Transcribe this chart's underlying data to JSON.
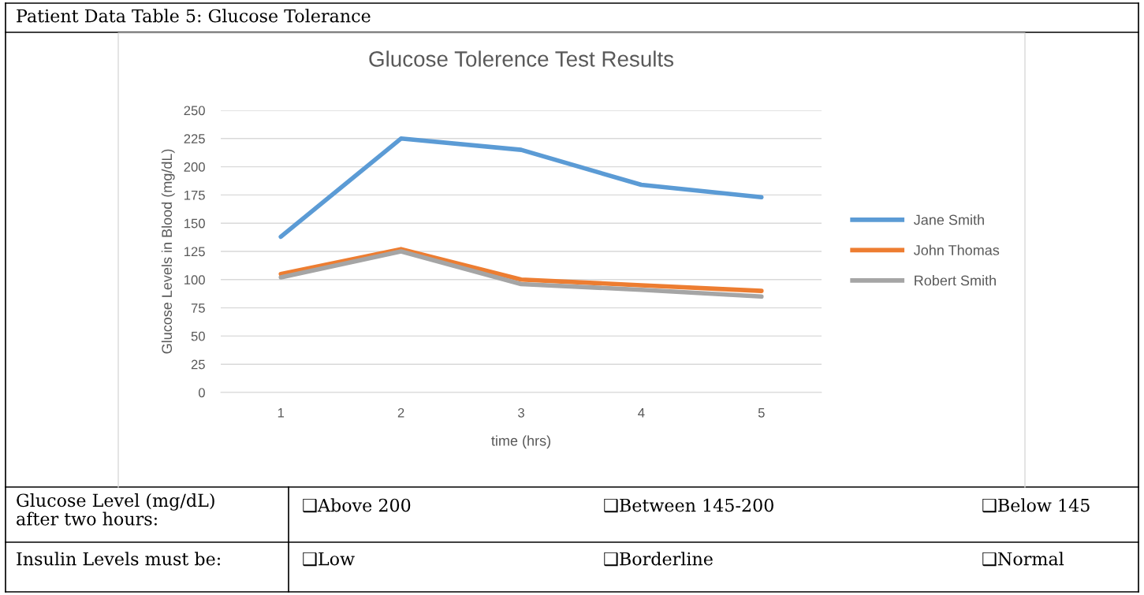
{
  "chart_data": {
    "type": "line",
    "title": "Glucose Tolerence Test Results",
    "xlabel": "time (hrs)",
    "ylabel": "Glucose Levels in Blood (mg/dL)",
    "categories": [
      "1",
      "2",
      "3",
      "4",
      "5"
    ],
    "series": [
      {
        "name": "Jane Smith",
        "color": "#5b9bd5",
        "values": [
          138,
          225,
          215,
          184,
          173
        ]
      },
      {
        "name": "John Thomas",
        "color": "#ed7d31",
        "values": [
          105,
          127,
          100,
          95,
          90
        ]
      },
      {
        "name": "Robert Smith",
        "color": "#a5a5a5",
        "values": [
          102,
          125,
          96,
          91,
          85
        ]
      }
    ],
    "ylim": [
      0,
      250
    ],
    "yticks": [
      0,
      25,
      50,
      75,
      100,
      125,
      150,
      175,
      200,
      225,
      250
    ],
    "grid": "y",
    "legend": "right",
    "marker": "none",
    "line_style": "solid",
    "annotations": [
      "Patient Data Table 5: Glucose Tolerance",
      "Glucose Level (mg/dL)\nafter two hours:",
      "❑Above 200",
      "❑Between 145-200",
      "❑Below 145",
      "Insulin Levels must be:",
      "❑Low",
      "❑Borderline",
      "❑Normal"
    ]
  }
}
